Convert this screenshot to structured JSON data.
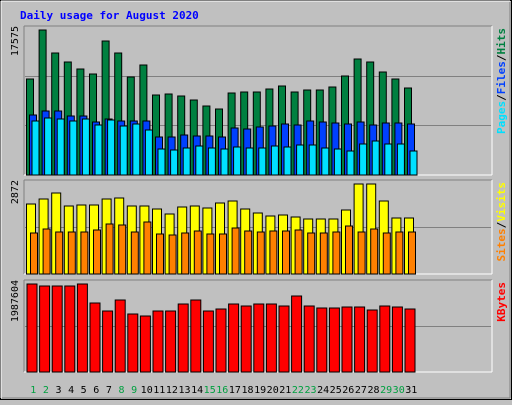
{
  "title": "Daily usage for August 2020",
  "colors": {
    "background": "#c0c0c0",
    "title": "#0000ff",
    "hits": "#008040",
    "files": "#0040ff",
    "pages": "#00e0ff",
    "visits": "#ffff00",
    "sites": "#ff8000",
    "kbytes": "#ff0000",
    "weekday_label": "#008040",
    "weekend_label": "#00a040"
  },
  "chart_data": [
    {
      "type": "bar",
      "panel": "hits-files-pages",
      "y_max_label": "17575",
      "side_label": [
        "Pages",
        "/",
        "Files",
        "/",
        "Hits"
      ],
      "categories": [
        "1",
        "2",
        "3",
        "4",
        "5",
        "6",
        "7",
        "8",
        "9",
        "10",
        "11",
        "12",
        "13",
        "14",
        "15",
        "16",
        "17",
        "18",
        "19",
        "20",
        "21",
        "22",
        "23",
        "24",
        "25",
        "26",
        "27",
        "28",
        "29",
        "30",
        "31"
      ],
      "ylim": [
        0,
        17575
      ],
      "series": [
        {
          "name": "Hits",
          "color": "#008040",
          "values": [
            11600,
            17575,
            14800,
            13700,
            12800,
            12300,
            16200,
            14800,
            11900,
            13300,
            9700,
            9800,
            9600,
            9100,
            8400,
            8000,
            9900,
            10100,
            10000,
            10400,
            10800,
            10100,
            10300,
            10300,
            10700,
            12000,
            14100,
            13700,
            12500,
            11600,
            10500
          ]
        },
        {
          "name": "Files",
          "color": "#0040ff",
          "values": [
            7300,
            7800,
            7800,
            7100,
            7100,
            6400,
            6800,
            6600,
            6500,
            6600,
            4600,
            4600,
            4900,
            4700,
            4700,
            4600,
            5700,
            5600,
            5800,
            5900,
            6200,
            6100,
            6500,
            6400,
            6300,
            6200,
            6400,
            6100,
            6300,
            6300,
            6200
          ]
        },
        {
          "name": "Pages",
          "color": "#00e0ff",
          "values": [
            6500,
            6900,
            6800,
            6500,
            6800,
            6100,
            6700,
            5900,
            6200,
            5500,
            3100,
            3000,
            3300,
            3500,
            3300,
            3100,
            3400,
            3300,
            3300,
            3500,
            3400,
            3600,
            3600,
            3300,
            3100,
            2900,
            3700,
            4100,
            3800,
            3700,
            2900
          ]
        }
      ]
    },
    {
      "type": "bar",
      "panel": "visits-sites",
      "y_max_label": "2872",
      "side_label": [
        "Sites",
        "/",
        "Visits"
      ],
      "categories": [
        "1",
        "2",
        "3",
        "4",
        "5",
        "6",
        "7",
        "8",
        "9",
        "10",
        "11",
        "12",
        "13",
        "14",
        "15",
        "16",
        "17",
        "18",
        "19",
        "20",
        "21",
        "22",
        "23",
        "24",
        "25",
        "26",
        "27",
        "28",
        "29",
        "30",
        "31"
      ],
      "ylim": [
        0,
        2872
      ],
      "series": [
        {
          "name": "Visits",
          "color": "#ffff00",
          "values": [
            2235,
            2390,
            2572,
            2184,
            2216,
            2216,
            2403,
            2422,
            2165,
            2165,
            2071,
            1903,
            2145,
            2165,
            2110,
            2265,
            2325,
            2090,
            1960,
            1865,
            1890,
            1827,
            1750,
            1750,
            1750,
            2030,
            2872,
            2872,
            2335,
            1800,
            1800
          ]
        },
        {
          "name": "Sites",
          "color": "#ff8000",
          "values": [
            1315,
            1445,
            1355,
            1345,
            1345,
            1400,
            1605,
            1575,
            1335,
            1670,
            1280,
            1255,
            1305,
            1385,
            1290,
            1270,
            1475,
            1375,
            1335,
            1375,
            1375,
            1405,
            1315,
            1315,
            1345,
            1525,
            1335,
            1450,
            1310,
            1345,
            1335
          ]
        }
      ]
    },
    {
      "type": "bar",
      "panel": "kbytes",
      "y_max_label": "1987604",
      "side_label": [
        "KBytes"
      ],
      "categories": [
        "1",
        "2",
        "3",
        "4",
        "5",
        "6",
        "7",
        "8",
        "9",
        "10",
        "11",
        "12",
        "13",
        "14",
        "15",
        "16",
        "17",
        "18",
        "19",
        "20",
        "21",
        "22",
        "23",
        "24",
        "25",
        "26",
        "27",
        "28",
        "29",
        "30",
        "31"
      ],
      "ylim": [
        0,
        1987604
      ],
      "series": [
        {
          "name": "KBytes",
          "color": "#ff0000",
          "values": [
            1987604,
            1951000,
            1941000,
            1941000,
            1980000,
            1553000,
            1382000,
            1620000,
            1303000,
            1270000,
            1382000,
            1382000,
            1534000,
            1633000,
            1382000,
            1421000,
            1531000,
            1495000,
            1525000,
            1525000,
            1495000,
            1722000,
            1495000,
            1445000,
            1445000,
            1475000,
            1475000,
            1395000,
            1495000,
            1475000,
            1421000
          ]
        }
      ]
    }
  ],
  "weekend_days": [
    "1",
    "2",
    "8",
    "9",
    "15",
    "16",
    "22",
    "23",
    "29",
    "30"
  ]
}
